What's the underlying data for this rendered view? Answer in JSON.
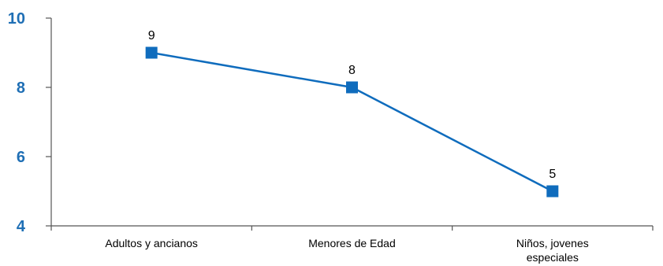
{
  "chart_data": {
    "type": "line",
    "categories": [
      "Adultos y ancianos",
      "Menores de Edad",
      "Niños, jovenes especiales"
    ],
    "category_lines": [
      [
        "Adultos y ancianos"
      ],
      [
        "Menores de Edad"
      ],
      [
        "Niños, jovenes",
        "especiales"
      ]
    ],
    "series": [
      {
        "values": [
          9,
          8,
          5
        ],
        "color": "#0f6cbd"
      }
    ],
    "data_labels": [
      "9",
      "8",
      "5"
    ],
    "ylim": [
      4,
      10
    ],
    "yticks": [
      4,
      6,
      8,
      10
    ],
    "ytick_labels": [
      "4",
      "6",
      "8",
      "10"
    ],
    "title": "",
    "xlabel": "",
    "ylabel": "",
    "grid": false,
    "legend": "none",
    "marker": "square",
    "tick_label_color": "#1f6fb5"
  }
}
